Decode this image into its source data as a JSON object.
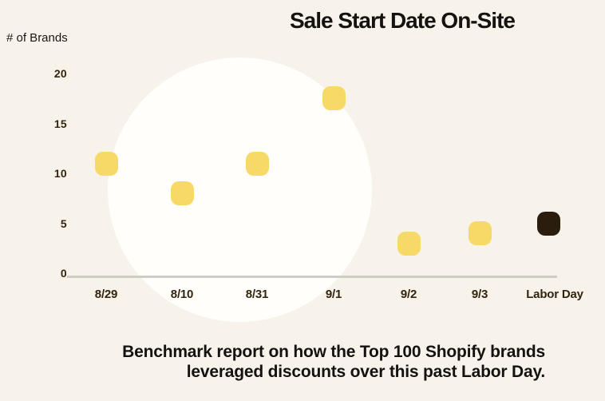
{
  "chart_data": {
    "type": "scatter",
    "title": "Sale Start Date On-Site",
    "ylabel": "# of Brands",
    "categories": [
      "8/29",
      "8/10",
      "8/31",
      "9/1",
      "9/2",
      "9/3",
      "Labor Day"
    ],
    "values": [
      11,
      8,
      11,
      17.5,
      3,
      4,
      5
    ],
    "point_colors": [
      "#f6d966",
      "#f6d966",
      "#f6d966",
      "#f6d966",
      "#f6d966",
      "#f6d966",
      "#2b1d0e"
    ],
    "yticks": [
      20,
      15,
      10,
      5,
      0
    ],
    "ylim": [
      0,
      20
    ],
    "grid": false,
    "legend_position": "none",
    "caption_lines": [
      "Benchmark report on how the Top 100 Shopify brands",
      "leveraged discounts over this past Labor Day."
    ]
  },
  "colors": {
    "background": "#f7f2ea",
    "circle": "#fffefb",
    "dot_yellow": "#f6d966",
    "dot_dark": "#2b1d0e",
    "axis_line": "#cfccc7",
    "tick_text": "#33240f",
    "heading_text": "#161210"
  }
}
